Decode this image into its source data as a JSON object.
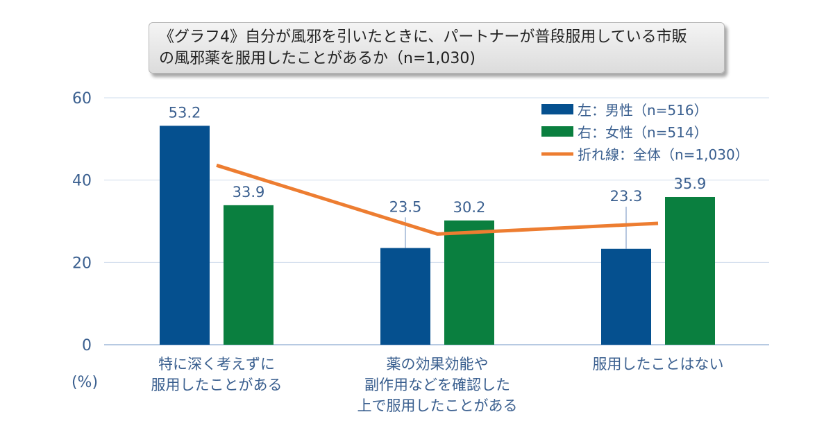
{
  "chart_data": {
    "type": "bar",
    "title_lines": [
      "《グラフ4》自分が風邪を引いたときに、パートナーが普段服用している市販",
      "の風邪薬を服用したことがあるか（n=1,030)"
    ],
    "unit_label": "(%)",
    "ylim": [
      0,
      60
    ],
    "yticks": [
      0,
      20,
      40,
      60
    ],
    "grid": true,
    "legend_position": "top-right",
    "categories": [
      [
        "特に深く考えずに",
        "服用したことがある"
      ],
      [
        "薬の効果効能や",
        "副作用などを確認した",
        "上で服用したことがある"
      ],
      [
        "服用したことはない"
      ]
    ],
    "series": [
      {
        "name": "左：男性（n=516）",
        "kind": "bar",
        "color": "#05508f",
        "values": [
          53.2,
          23.5,
          23.3
        ]
      },
      {
        "name": "右：女性（n=514）",
        "kind": "bar",
        "color": "#0a7f3f",
        "values": [
          33.9,
          30.2,
          35.9
        ]
      },
      {
        "name": "折れ線：全体（n=1,030）",
        "kind": "line",
        "color": "#ed7d31",
        "values": [
          43.6,
          26.9,
          29.5
        ]
      }
    ],
    "data_labels": [
      [
        "53.2",
        "23.5",
        "23.3"
      ],
      [
        "33.9",
        "30.2",
        "35.9"
      ]
    ]
  }
}
